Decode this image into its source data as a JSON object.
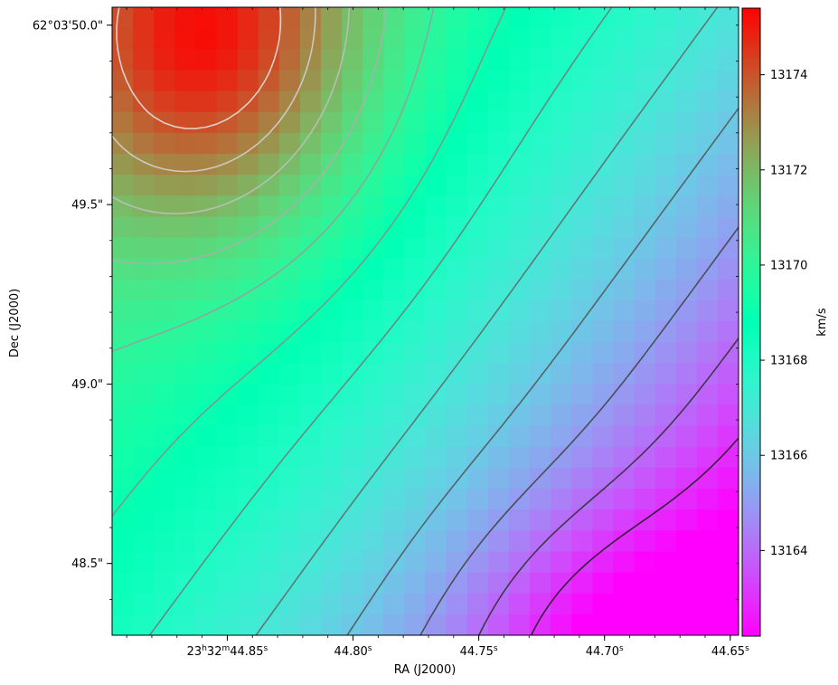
{
  "chart_data": {
    "type": "heatmap",
    "title": "",
    "xlabel": "RA (J2000)",
    "ylabel": "Dec (J2000)",
    "colorbar_label": "km/s",
    "colormap": "rainbow",
    "x_ticks": [
      {
        "value": 44.85,
        "label_main": "23",
        "sup1": "h",
        "label_mid": "32",
        "sup2": "m",
        "label_end": "44.85",
        "sup3": "s"
      },
      {
        "value": 44.8,
        "label_main": "44.80",
        "sup1": "s"
      },
      {
        "value": 44.75,
        "label_main": "44.75",
        "sup1": "s"
      },
      {
        "value": 44.7,
        "label_main": "44.70",
        "sup1": "s"
      },
      {
        "value": 44.65,
        "label_main": "44.65",
        "sup1": "s"
      }
    ],
    "y_ticks": [
      {
        "value": 50.0,
        "label": "62°03'50.0\""
      },
      {
        "value": 49.5,
        "label": "49.5\""
      },
      {
        "value": 49.0,
        "label": "49.0\""
      },
      {
        "value": 48.5,
        "label": "48.5\""
      }
    ],
    "xlim": [
      44.8958,
      44.6467
    ],
    "ylim": [
      48.3,
      50.05
    ],
    "clim": [
      13162.2,
      13175.4
    ],
    "colorbar_ticks": [
      {
        "value": 13164,
        "label": "13164"
      },
      {
        "value": 13166,
        "label": "13166"
      },
      {
        "value": 13168,
        "label": "13168"
      },
      {
        "value": 13170,
        "label": "13170"
      },
      {
        "value": 13172,
        "label": "13172"
      },
      {
        "value": 13174,
        "label": "13174"
      }
    ],
    "velocity_field": {
      "peak": {
        "ra": 44.86,
        "dec": 49.98,
        "value": 13175.2,
        "width_ra": 0.065,
        "width_dec": 0.55
      },
      "minimum": {
        "ra": 44.695,
        "dec": 48.3,
        "value": 13162.3
      },
      "background": 13170.2
    },
    "contour_levels": [
      13163,
      13164,
      13165,
      13166,
      13167,
      13168,
      13169,
      13170,
      13171,
      13172,
      13173,
      13174
    ],
    "grid": false
  }
}
